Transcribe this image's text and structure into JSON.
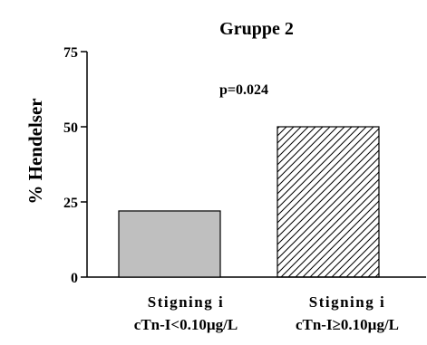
{
  "chart_data": {
    "type": "bar",
    "title": "Gruppe 2",
    "ylabel": "% Hendelser",
    "xlabel": "",
    "ylim": [
      0,
      75
    ],
    "yticks": [
      0,
      25,
      50,
      75
    ],
    "categories": [
      [
        "Stigning i",
        "cTn-I<0.10µg/L"
      ],
      [
        "Stigning i",
        "cTn-I≥0.10µg/L"
      ]
    ],
    "values": [
      22,
      50
    ],
    "bar_styles": [
      "gray-fill",
      "diagonal-hatch"
    ],
    "colors": {
      "bar_gray": "#bfbfbf",
      "stroke": "#000000",
      "hatch": "#000000"
    },
    "annotation": "p=0.024",
    "grid": false,
    "legend": "none"
  }
}
